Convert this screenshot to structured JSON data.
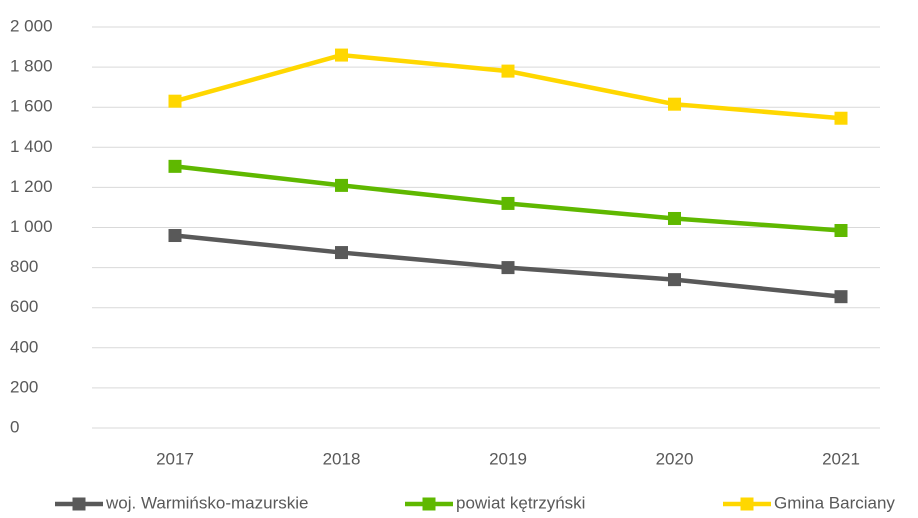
{
  "chart_data": {
    "type": "line",
    "categories": [
      "2017",
      "2018",
      "2019",
      "2020",
      "2021"
    ],
    "series": [
      {
        "name": "woj. Warmińsko-mazurskie",
        "color": "#595959",
        "values": [
          960,
          875,
          800,
          740,
          655
        ]
      },
      {
        "name": "powiat kętrzyński",
        "color": "#5fb800",
        "values": [
          1305,
          1210,
          1120,
          1045,
          985
        ]
      },
      {
        "name": "Gmina Barciany",
        "color": "#ffd700",
        "values": [
          1630,
          1860,
          1780,
          1615,
          1545
        ]
      }
    ],
    "ylim": [
      0,
      2000
    ],
    "yticks": [
      0,
      200,
      400,
      600,
      800,
      {
        "value": 1000,
        "label": "1 000"
      },
      {
        "value": 1200,
        "label": "1 200"
      },
      {
        "value": 1400,
        "label": "1 400"
      },
      {
        "value": 1600,
        "label": "1 600"
      },
      {
        "value": 1800,
        "label": "1 800"
      },
      {
        "value": 2000,
        "label": "2 000"
      }
    ],
    "grid": true,
    "legend": "bottom"
  }
}
